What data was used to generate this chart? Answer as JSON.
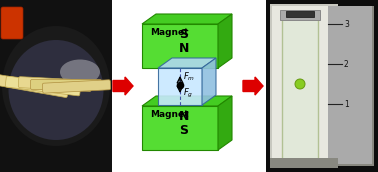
{
  "magnet_color": "#55dd33",
  "magnet_top_color": "#44cc22",
  "magnet_side_color": "#33aa11",
  "tube_color": "#c8e8ff",
  "tube_top_color": "#b0d8f0",
  "tube_side_color": "#90c0e0",
  "bg_color": "#ffffff",
  "arrow_color": "#dd0000",
  "text_color": "#000000",
  "magnet_label": "Magnet",
  "top_poles": [
    "S",
    "N"
  ],
  "bottom_poles": [
    "N",
    "S"
  ],
  "force_up_label": "F",
  "force_up_sub": "m",
  "force_down_label": "F",
  "force_down_sub": "g",
  "fig_width": 3.78,
  "fig_height": 1.72,
  "dpi": 100,
  "left_photo_bg": "#111111",
  "left_pan_color": "#222222",
  "left_oil_color": "#2a2a3a",
  "food_color1": "#e8d890",
  "food_color2": "#c8b860",
  "right_photo_bg": "#111111",
  "right_device_bg": "#cccccc",
  "right_ruler_bg": "#888888",
  "right_cuvette_color": "#ddeebb",
  "right_sample_color": "#aadd44"
}
